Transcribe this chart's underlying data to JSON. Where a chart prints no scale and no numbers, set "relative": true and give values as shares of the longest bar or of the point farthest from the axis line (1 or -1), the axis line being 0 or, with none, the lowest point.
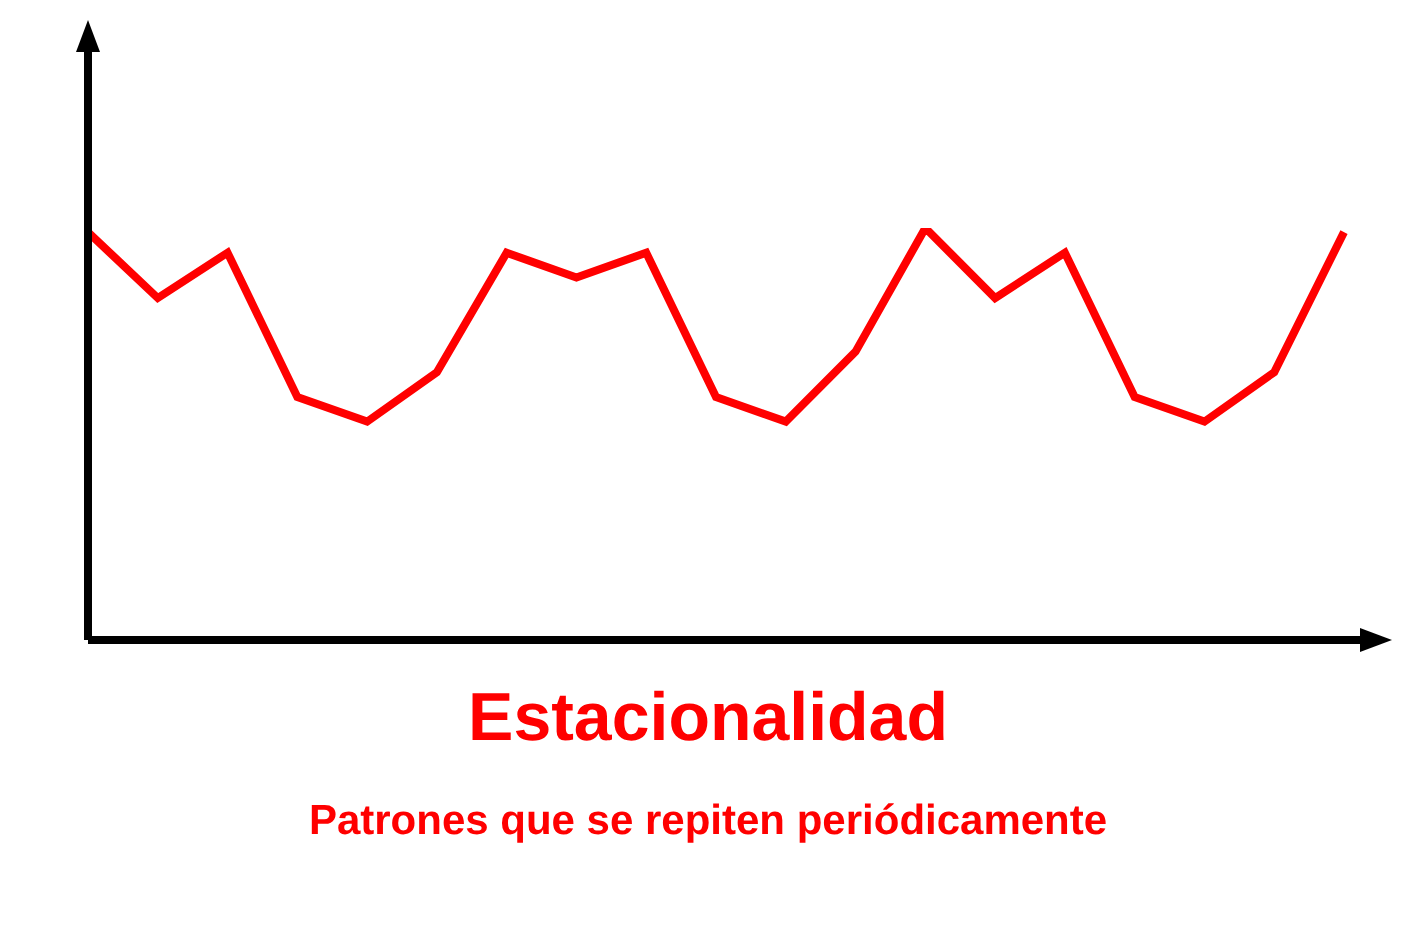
{
  "chart_data": {
    "type": "line",
    "title": "Estacionalidad",
    "subtitle": "Patrones que se repiten periódicamente",
    "relative": true,
    "categories": [
      null,
      null,
      null,
      null,
      null,
      null,
      null,
      null,
      null,
      null,
      null,
      null,
      null,
      null,
      null,
      null,
      null,
      null,
      null
    ],
    "series": [
      {
        "color": "#ff0000",
        "values": [
          0.99,
          0.83,
          0.94,
          0.59,
          0.53,
          0.65,
          0.94,
          0.88,
          0.94,
          0.59,
          0.53,
          0.7,
          1,
          0.83,
          0.94,
          0.59,
          0.53,
          0.65,
          0.99
        ]
      }
    ],
    "legend": false,
    "grid": false,
    "marker": "none",
    "line_style": "solid"
  }
}
